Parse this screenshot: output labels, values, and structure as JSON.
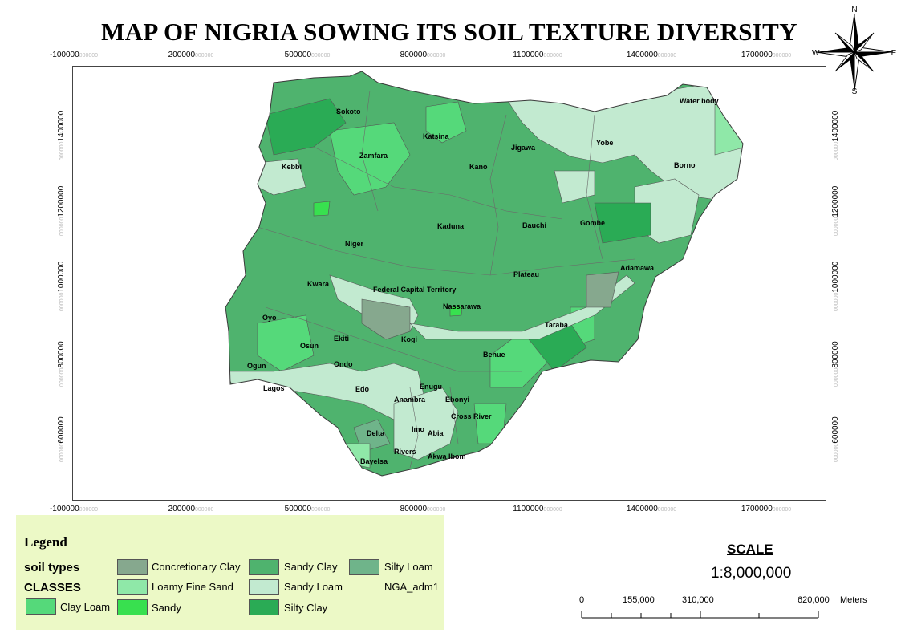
{
  "title": "MAP OF NIGRIA SOWING ITS SOIL TEXTURE DIVERSITY",
  "compass": {
    "n": "N",
    "s": "S",
    "e": "E",
    "w": "W"
  },
  "axis": {
    "x_ticks": [
      "-100000",
      "200000",
      "500000",
      "800000",
      "1100000",
      "1400000",
      "1700000"
    ],
    "y_ticks": [
      "1400000",
      "1200000",
      "1000000",
      "800000",
      "600000"
    ]
  },
  "places": {
    "sokoto": "Sokoto",
    "katsina": "Katsina",
    "zamfara": "Zamfara",
    "jigawa": "Jigawa",
    "yobe": "Yobe",
    "water_body": "Water body",
    "kebbi": "Kebbi",
    "kano": "Kano",
    "borno": "Borno",
    "kaduna": "Kaduna",
    "bauchi": "Bauchi",
    "gombe": "Gombe",
    "niger": "Niger",
    "adamawa": "Adamawa",
    "plateau": "Plateau",
    "kwara": "Kwara",
    "fct": "Federal Capital Territory",
    "nassarawa": "Nassarawa",
    "oyo": "Oyo",
    "taraba": "Taraba",
    "ekiti": "Ekiti",
    "kogi": "Kogi",
    "osun": "Osun",
    "benue": "Benue",
    "ogun": "Ogun",
    "ondo": "Ondo",
    "enugu": "Enugu",
    "lagos": "Lagos",
    "edo": "Edo",
    "anambra": "Anambra",
    "ebonyi": "Ebonyi",
    "cross_river": "Cross River",
    "delta": "Delta",
    "imo": "Imo",
    "abia": "Abia",
    "rivers": "Rivers",
    "akwa_ibom": "Akwa Ibom",
    "bayelsa": "Bayelsa"
  },
  "legend": {
    "title": "Legend",
    "soil_types": "soil types",
    "classes": "CLASSES",
    "items": [
      {
        "label": "Clay Loam",
        "color": "#55d97a"
      },
      {
        "label": "Concretionary Clay",
        "color": "#86a88e"
      },
      {
        "label": "Loamy Fine Sand",
        "color": "#8fe8a8"
      },
      {
        "label": "Sandy",
        "color": "#38e04f"
      },
      {
        "label": "Sandy Clay",
        "color": "#4fb36e"
      },
      {
        "label": "Sandy Loam",
        "color": "#c2ead0"
      },
      {
        "label": "Silty Clay",
        "color": "#2aab55"
      },
      {
        "label": "Silty Loam",
        "color": "#6fb48a"
      }
    ],
    "boundary_label": "NGA_adm1"
  },
  "scale": {
    "heading": "SCALE",
    "ratio": "1:8,000,000",
    "ticks": [
      "0",
      "155,000",
      "310,000",
      "620,000"
    ],
    "unit": "Meters"
  }
}
